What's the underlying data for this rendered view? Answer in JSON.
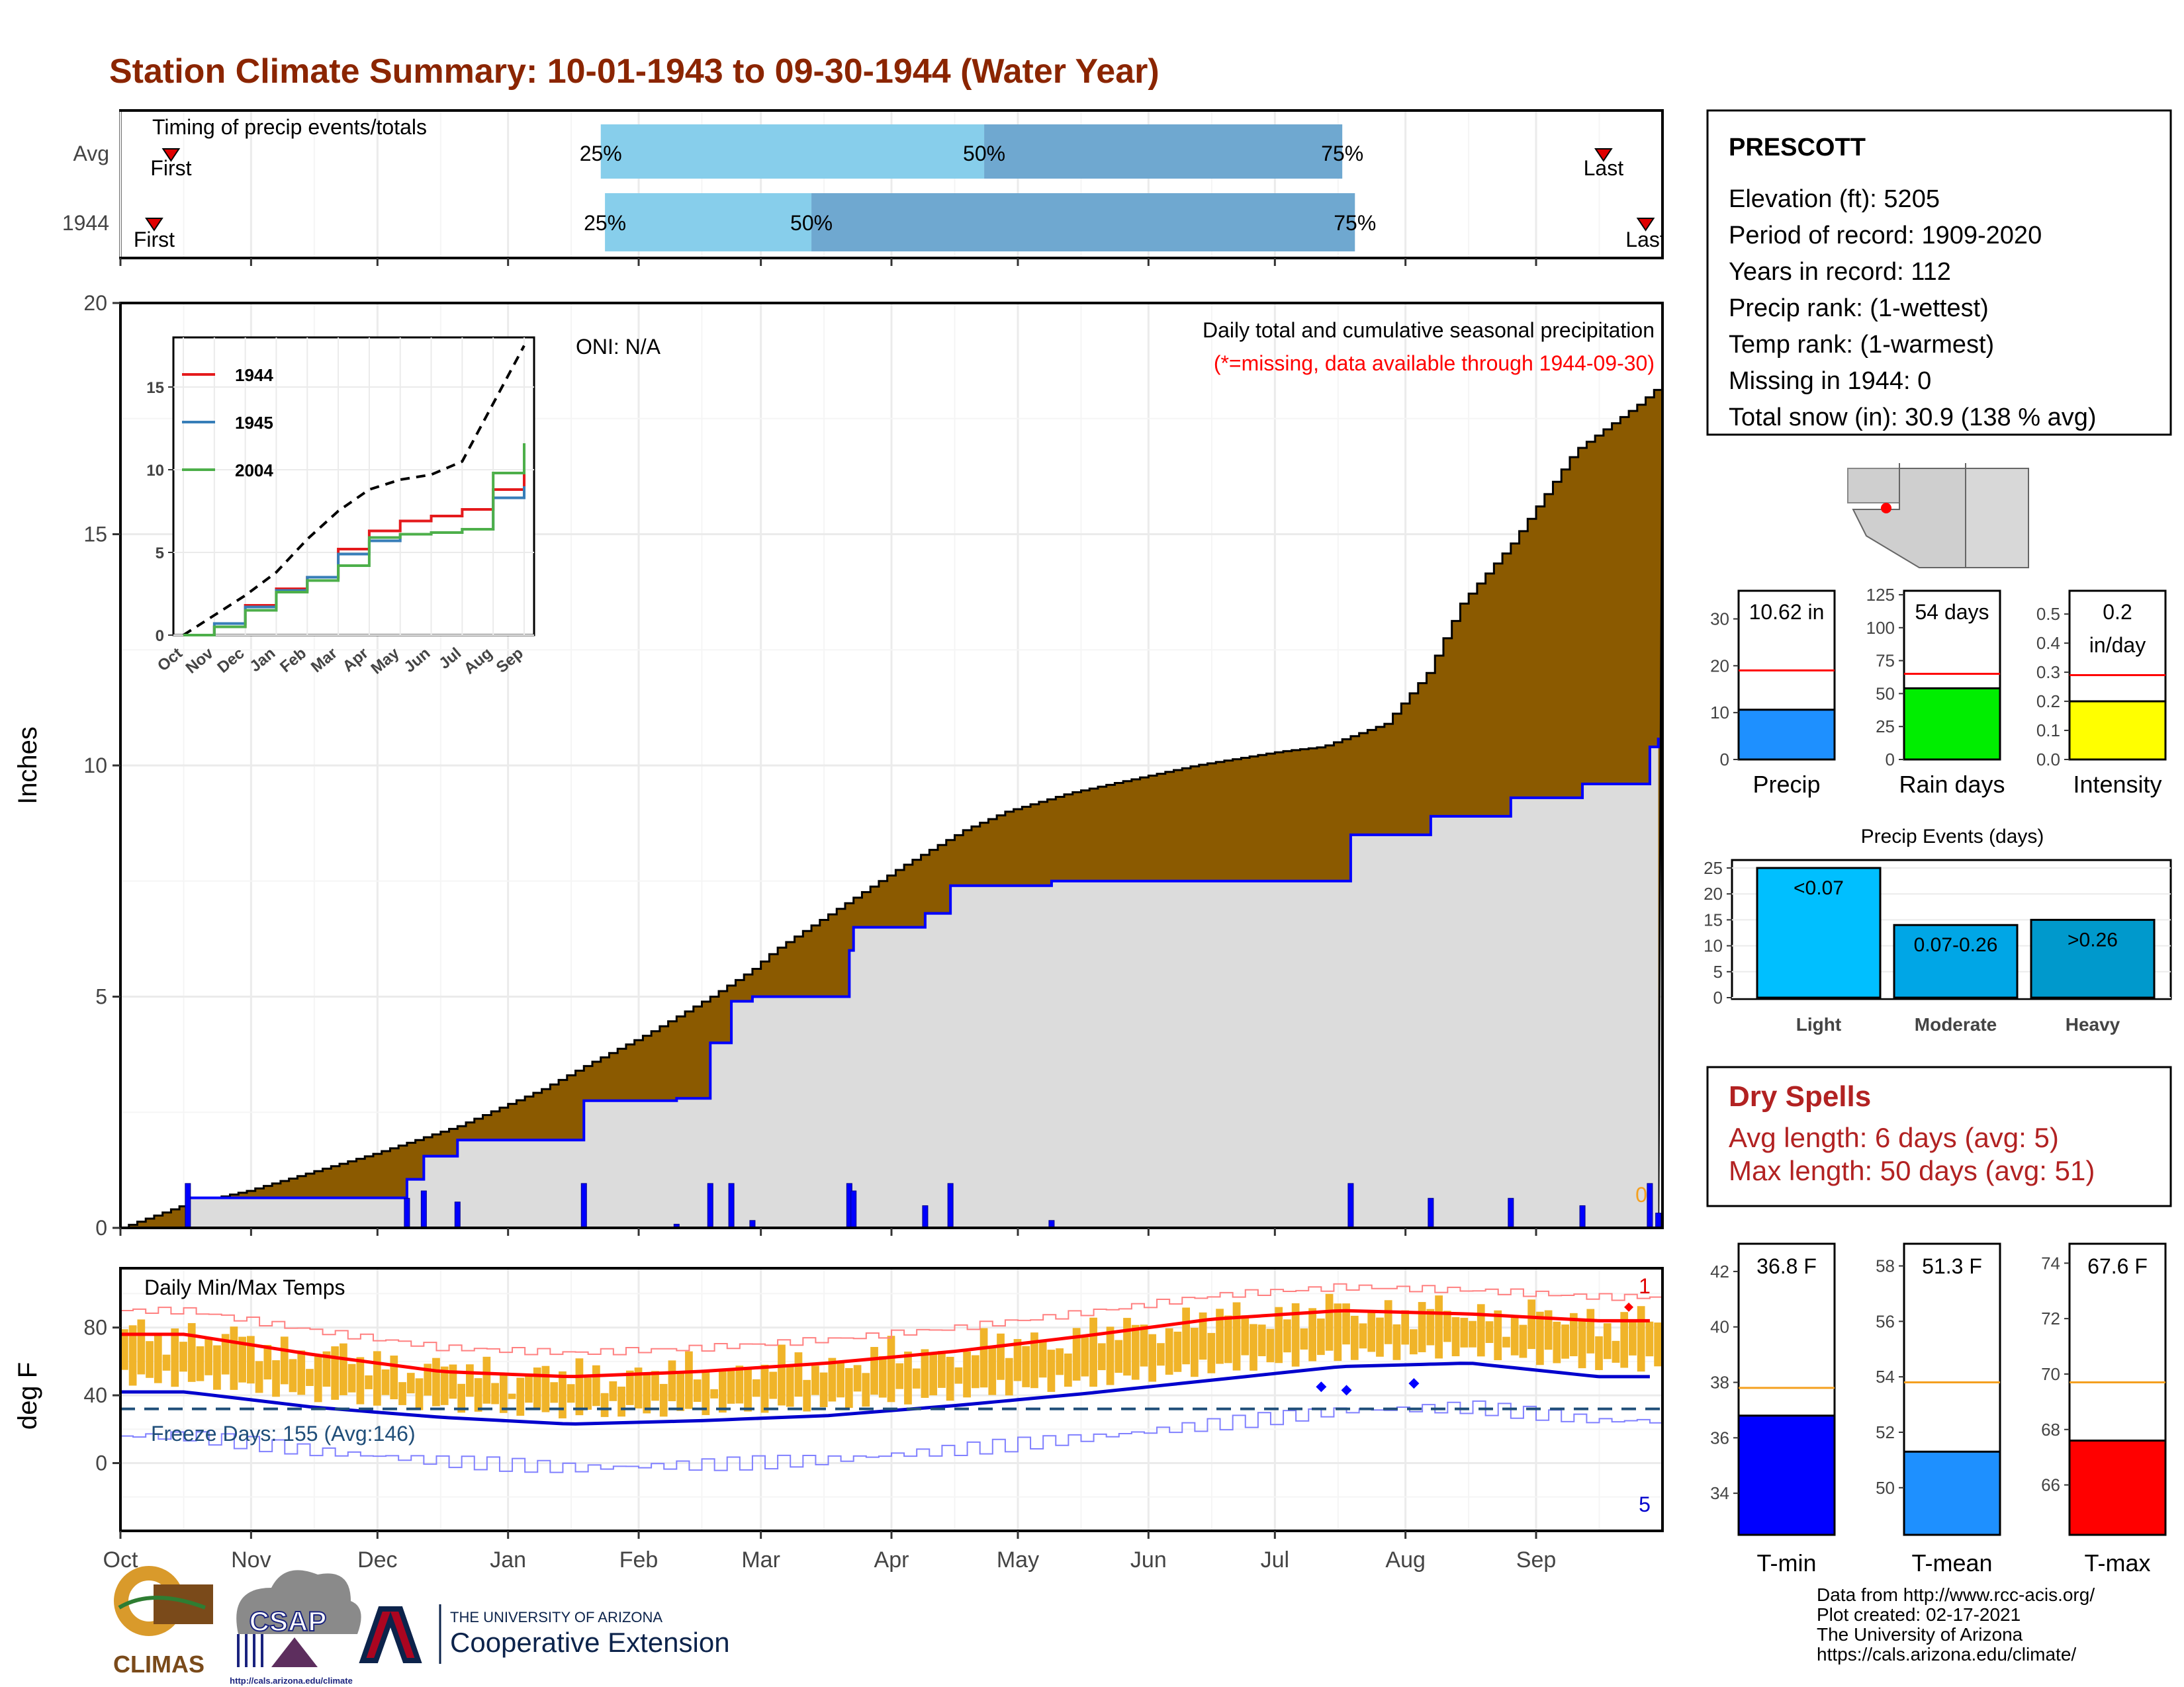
{
  "title": "Station Climate Summary: 10-01-1943 to 09-30-1944 (Water Year)",
  "colors": {
    "title": "#8b2500",
    "cum_fill": "#8b5a00",
    "avg_fill": "#dcdcdc",
    "blue_line": "#0000ff",
    "light_bar": "#87ceeb",
    "dark_bar": "#6fa8d0",
    "temp_bar": "#f0b429",
    "tmax_line": "#ff0000",
    "tmin_line": "#0000cd",
    "orange_ref": "#f4a020",
    "dry_red": "#b22222"
  },
  "months": [
    "Oct",
    "Nov",
    "Dec",
    "Jan",
    "Feb",
    "Mar",
    "Apr",
    "May",
    "Jun",
    "Jul",
    "Aug",
    "Sep"
  ],
  "timing": {
    "label": "Timing of precip events/totals",
    "rows": [
      {
        "name": "Avg",
        "first_label": "First",
        "last_label": "Last",
        "first_day": 12,
        "last_day": 352,
        "p25": 114,
        "p50": 205,
        "p75": 290,
        "q25_label": "25%",
        "q50_label": "50%",
        "q75_label": "75%"
      },
      {
        "name": "1944",
        "first_label": "First",
        "last_label": "Last",
        "first_day": 8,
        "last_day": 362,
        "p25": 115,
        "p50": 164,
        "p75": 293,
        "q25_label": "25%",
        "q50_label": "50%",
        "q75_label": "75%"
      }
    ]
  },
  "main_chart": {
    "ylabel": "Inches",
    "yticks": [
      0,
      5,
      10,
      15,
      20
    ],
    "ylim": [
      0,
      20
    ],
    "oni": "ONI: N/A",
    "caption": "Daily total and cumulative seasonal precipitation",
    "missing_note": "(*=missing, data available through 1944-09-30)",
    "missing_count": "0"
  },
  "inset": {
    "yticks": [
      0,
      5,
      10,
      15
    ],
    "legend": [
      {
        "name": "1944",
        "color": "#e41a1c"
      },
      {
        "name": "1945",
        "color": "#377eb8"
      },
      {
        "name": "2004",
        "color": "#4daf4a"
      }
    ],
    "xticks": [
      "Oct",
      "Nov",
      "Dec",
      "Jan",
      "Feb",
      "Mar",
      "Apr",
      "May",
      "Jun",
      "Jul",
      "Aug",
      "Sep"
    ]
  },
  "temp_chart": {
    "ylabel": "deg F",
    "label": "Daily Min/Max Temps",
    "yticks": [
      0,
      40,
      80
    ],
    "freeze": "Freeze Days: 155 (Avg:146)",
    "record_high_count": "1",
    "record_low_count": "5"
  },
  "station": {
    "name": "PRESCOTT",
    "lines": [
      "Elevation (ft): 5205",
      "Period of record: 1909-2020",
      "Years in record: 112",
      "Precip rank:  (1-wettest)",
      "Temp rank:  (1-warmest)",
      "Missing in 1944: 0",
      "Total snow (in): 30.9 (138 % avg)"
    ]
  },
  "mini_bars": [
    {
      "name": "Precip",
      "label": "10.62 in",
      "value": 10.62,
      "avg": 19,
      "ymax": 36,
      "yticks": [
        0,
        10,
        20,
        30
      ],
      "color": "#1e90ff"
    },
    {
      "name": "Rain days",
      "label": "54 days",
      "value": 54,
      "avg": 65,
      "ymax": 128,
      "yticks": [
        0,
        25,
        50,
        75,
        100,
        125
      ],
      "color": "#00ee00"
    },
    {
      "name": "Intensity",
      "label": "0.2",
      "label2": "in/day",
      "value": 0.2,
      "avg": 0.29,
      "ymax": 0.58,
      "yticks": [
        "0.0",
        "0.1",
        "0.2",
        "0.3",
        "0.4",
        "0.5"
      ],
      "color": "#ffff00"
    }
  ],
  "events": {
    "title": "Precip Events (days)",
    "yticks": [
      0,
      5,
      10,
      15,
      20,
      25
    ],
    "bars": [
      {
        "name": "Light",
        "label": "<0.07",
        "value": 25,
        "color": "#00bfff"
      },
      {
        "name": "Moderate",
        "label": "0.07-0.26",
        "value": 14,
        "color": "#00a6e6"
      },
      {
        "name": "Heavy",
        "label": ">0.26",
        "value": 15,
        "color": "#0099cc"
      }
    ]
  },
  "dry_spells": {
    "title": "Dry Spells",
    "avg_line": "Avg length: 6 days (avg: 5)",
    "max_line": "Max length: 50 days (avg: 51)"
  },
  "temp_bars": [
    {
      "name": "T-min",
      "label": "36.8 F",
      "value": 36.8,
      "avg": 37.8,
      "ymin": 32.5,
      "ymax": 43,
      "yticks": [
        34,
        36,
        38,
        40,
        42
      ],
      "color": "#0000ff"
    },
    {
      "name": "T-mean",
      "label": "51.3 F",
      "value": 51.3,
      "avg": 53.8,
      "ymin": 48.3,
      "ymax": 58.8,
      "yticks": [
        50,
        52,
        54,
        56,
        58
      ],
      "color": "#1e90ff"
    },
    {
      "name": "T-max",
      "label": "67.6 F",
      "value": 67.6,
      "avg": 69.7,
      "ymin": 64.2,
      "ymax": 74.7,
      "yticks": [
        66,
        68,
        70,
        72,
        74
      ],
      "color": "#ff0000"
    }
  ],
  "footer": {
    "lines": [
      "Data from http://www.rcc-acis.org/",
      "Plot created: 02-17-2021",
      "The University of Arizona",
      "https://cals.arizona.edu/climate/"
    ],
    "climas": "CLIMAS",
    "csap": "CSAP",
    "csap_url": "http://cals.arizona.edu/climate",
    "ua_small": "THE UNIVERSITY OF ARIZONA",
    "ua_big": "Cooperative Extension"
  },
  "chart_data": [
    {
      "type": "area",
      "title": "Daily total and cumulative seasonal precipitation",
      "ylabel": "Inches",
      "ylim": [
        0,
        20
      ],
      "series": [
        {
          "name": "cumulative (brown)",
          "x": [
            0,
            15,
            30,
            45,
            60,
            80,
            100,
            110,
            125,
            140,
            150,
            155,
            170,
            185,
            200,
            210,
            225,
            240,
            255,
            265,
            275,
            285,
            300,
            310,
            318,
            330,
            345,
            360,
            365
          ],
          "values": [
            0,
            0.5,
            0.8,
            1.2,
            1.6,
            2.2,
            3.0,
            3.5,
            4.2,
            5.0,
            5.6,
            6.0,
            6.9,
            7.8,
            8.6,
            9.0,
            9.4,
            9.7,
            10.0,
            10.15,
            10.3,
            10.4,
            10.9,
            12.0,
            13.5,
            14.8,
            16.8,
            17.8,
            18.2
          ]
        },
        {
          "name": "1944 cumulative (blue)",
          "x": [
            0,
            16,
            60,
            68,
            72,
            80,
            110,
            132,
            140,
            145,
            150,
            160,
            173,
            174,
            183,
            191,
            196,
            197,
            219,
            221,
            273,
            290,
            292,
            299,
            310,
            311,
            318,
            330,
            347,
            348,
            363,
            365
          ],
          "values": [
            0,
            0.65,
            0.65,
            1.05,
            1.55,
            1.9,
            2.75,
            2.8,
            4.0,
            4.9,
            5.0,
            5.0,
            6.0,
            6.5,
            6.5,
            6.8,
            6.8,
            7.4,
            7.4,
            7.5,
            7.5,
            7.5,
            8.5,
            8.5,
            8.5,
            8.9,
            8.9,
            9.3,
            9.6,
            9.6,
            10.4,
            10.6
          ]
        }
      ]
    },
    {
      "type": "line",
      "title": "",
      "x": [
        "Oct",
        "Nov",
        "Dec",
        "Jan",
        "Feb",
        "Mar",
        "Apr",
        "May",
        "Jun",
        "Jul",
        "Aug",
        "Sep"
      ],
      "ylim": [
        0,
        18
      ],
      "series": [
        {
          "name": "",
          "values": [
            0,
            1.2,
            2.4,
            3.8,
            5.8,
            7.5,
            8.8,
            9.4,
            9.7,
            10.5,
            14.0,
            17.5
          ]
        },
        {
          "name": "1944",
          "values": [
            0,
            0.5,
            1.8,
            2.8,
            3.5,
            5.2,
            6.3,
            6.9,
            7.2,
            7.6,
            8.8,
            10.6
          ]
        },
        {
          "name": "1945",
          "values": [
            0,
            0.7,
            1.7,
            2.7,
            3.5,
            4.9,
            5.7,
            6.1,
            6.2,
            6.4,
            8.3,
            9.0
          ]
        },
        {
          "name": "2004",
          "values": [
            0,
            0.5,
            1.5,
            2.6,
            3.3,
            4.2,
            5.9,
            6.1,
            6.2,
            6.4,
            9.8,
            11.6
          ]
        }
      ]
    },
    {
      "type": "bar",
      "title": "Daily Min/Max Temps",
      "ylabel": "deg F",
      "ylim": [
        -40,
        115
      ],
      "x": [
        "Oct",
        "Nov",
        "Dec",
        "Jan",
        "Feb",
        "Mar",
        "Apr",
        "May",
        "Jun",
        "Jul",
        "Aug",
        "Sep"
      ],
      "series": [
        {
          "name": "",
          "values": [
            76,
            64,
            54,
            51,
            54,
            59,
            66,
            75,
            85,
            90,
            88,
            84
          ]
        },
        {
          "name": "",
          "values": [
            42,
            33,
            27,
            23,
            25,
            28,
            34,
            41,
            49,
            57,
            59,
            51
          ]
        }
      ]
    },
    {
      "type": "bar",
      "title": "Precip Events (days)",
      "categories": [
        "Light",
        "Moderate",
        "Heavy"
      ],
      "values": [
        25,
        14,
        15
      ],
      "ylim": [
        0,
        25
      ]
    }
  ]
}
